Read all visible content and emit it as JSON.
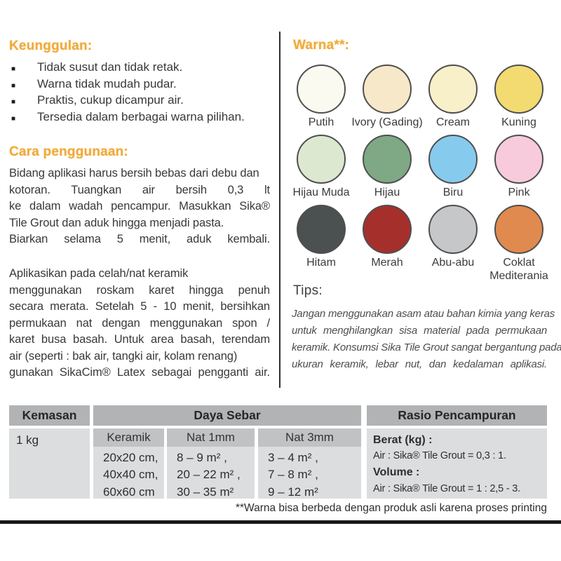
{
  "style": {
    "accent_heading_color": "#EFA93C"
  },
  "left": {
    "advantages_heading": "Keunggulan:",
    "advantages": [
      "Tidak susut dan tidak retak.",
      "Warna tidak mudah pudar.",
      "Praktis, cukup dicampur air.",
      "Tersedia dalam berbagai warna pilihan."
    ],
    "usage_heading": "Cara penggunaan:",
    "usage_para1_lines": [
      "Bidang aplikasi harus bersih bebas dari debu dan",
      "kotoran. Tuangkan air bersih 0,3 lt",
      "ke dalam wadah pencampur. Masukkan Sika®",
      "Tile Grout dan aduk hingga menjadi pasta.",
      "Biarkan selama 5 menit, aduk kembali."
    ],
    "usage_para2_lines": [
      "Aplikasikan pada celah/nat keramik",
      "menggunakan roskam karet hingga penuh",
      "secara merata. Setelah 5 - 10 menit, bersihkan",
      "permukaan nat dengan menggunakan spon /",
      "karet busa basah. Untuk area basah, terendam",
      "air (seperti : bak air, tangki air, kolam renang)",
      "gunakan SikaCim® Latex sebagai pengganti air."
    ]
  },
  "right": {
    "colors_heading": "Warna**:",
    "swatches": [
      {
        "label": "Putih",
        "color": "#FAFAF0"
      },
      {
        "label": "Ivory (Gading)",
        "color": "#F6E8C8"
      },
      {
        "label": "Cream",
        "color": "#F7F0C9"
      },
      {
        "label": "Kuning",
        "color": "#F3DB72"
      },
      {
        "label": "Hijau Muda",
        "color": "#DDE8D1"
      },
      {
        "label": "Hijau",
        "color": "#7FA884"
      },
      {
        "label": "Biru",
        "color": "#86CBEE"
      },
      {
        "label": "Pink",
        "color": "#F7CBDC"
      },
      {
        "label": "Hitam",
        "color": "#4B5150"
      },
      {
        "label": "Merah",
        "color": "#A52F2B"
      },
      {
        "label": "Abu-abu",
        "color": "#C6C7C9"
      },
      {
        "label": "Coklat Mediterania",
        "color": "#E08A4F"
      }
    ],
    "tips_heading": "Tips:",
    "tips_lines": [
      "Jangan menggunakan asam atau bahan kimia yang keras",
      "untuk menghilangkan sisa material pada permukaan",
      "keramik. Konsumsi Sika Tile Grout sangat bergantung pada",
      "ukuran keramik, lebar nut, dan kedalaman aplikasi."
    ]
  },
  "table": {
    "kemasan_header": "Kemasan",
    "kemasan_value": "1 kg",
    "daya_sebar_header": "Daya Sebar",
    "rasio_header": "Rasio Pencampuran",
    "sub_headers": [
      "Keramik",
      "Nat 1mm",
      "Nat 3mm"
    ],
    "keramik_rows": [
      "20x20 cm,",
      "40x40 cm,",
      "60x60 cm"
    ],
    "nat1mm_rows": [
      "8 – 9 m² ,",
      "20 – 22 m² ,",
      "30 – 35 m²"
    ],
    "nat3mm_rows": [
      "3 – 4 m² ,",
      "7 – 8 m² ,",
      "9 – 12 m²"
    ],
    "rasio": {
      "berat_label": "Berat (kg) :",
      "berat_value": "Air : Sika® Tile Grout = 0,3 : 1.",
      "volume_label": "Volume :",
      "volume_value": "Air : Sika® Tile Grout = 1 : 2,5 - 3."
    }
  },
  "footnote": "**Warna bisa berbeda dengan produk asli karena proses printing"
}
